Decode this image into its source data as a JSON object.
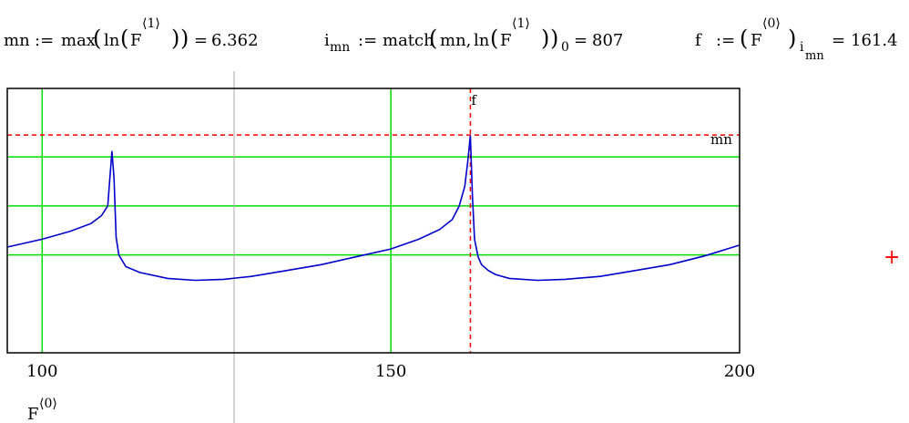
{
  "formulas": {
    "mn": {
      "lhs": "mn",
      "assign": ":=",
      "func": "max",
      "inner_func": "ln",
      "var": "F",
      "sup": "⟨1⟩",
      "eq": "=",
      "result": "6.362"
    },
    "imn": {
      "lhs": "i",
      "lhs_sub": "mn",
      "assign": ":=",
      "func": "match",
      "arg1": "mn,",
      "inner_func": "ln",
      "var": "F",
      "sup": "⟨1⟩",
      "sub": "0",
      "eq": "=",
      "result": "807"
    },
    "f": {
      "lhs": "f",
      "assign": ":=",
      "var": "F",
      "sup": "⟨0⟩",
      "sub": "i",
      "sub_sub": "mn",
      "eq": "=",
      "result": "161.4"
    }
  },
  "plot": {
    "x_axis_label_var": "F",
    "x_axis_label_sup": "⟨0⟩",
    "marker_labels": {
      "vertical": "f",
      "horizontal": "mn"
    },
    "colors": {
      "trace": "#0000cc",
      "grid": "#00dd00",
      "marker": "#ff0000",
      "cursor": "#aaaaaa"
    }
  },
  "chart_data": {
    "type": "line",
    "xlim": [
      95,
      200
    ],
    "ylim": [
      5.25,
      6.6
    ],
    "xticks": [
      "100",
      "150",
      "200"
    ],
    "grid": true,
    "markers": {
      "x": 161.4,
      "y": 6.362
    },
    "series": [
      {
        "x": [
          95,
          100,
          104,
          107,
          108.5,
          109.4,
          110.0,
          110.3,
          110.6,
          111,
          112,
          114,
          118,
          122,
          126,
          130,
          135,
          140,
          145,
          150,
          154,
          157,
          158.8,
          159.8,
          160.6,
          161.0,
          161.4,
          161.7,
          162.0,
          162.5,
          163,
          164,
          165,
          167,
          171,
          175,
          180,
          185,
          190,
          195,
          200
        ],
        "y": [
          5.79,
          5.83,
          5.87,
          5.91,
          5.95,
          6.0,
          6.28,
          6.14,
          5.84,
          5.75,
          5.69,
          5.66,
          5.63,
          5.62,
          5.625,
          5.64,
          5.67,
          5.7,
          5.74,
          5.78,
          5.83,
          5.88,
          5.93,
          6.0,
          6.1,
          6.22,
          6.36,
          6.05,
          5.83,
          5.74,
          5.7,
          5.67,
          5.65,
          5.63,
          5.62,
          5.625,
          5.64,
          5.67,
          5.7,
          5.745,
          5.8
        ]
      }
    ]
  }
}
